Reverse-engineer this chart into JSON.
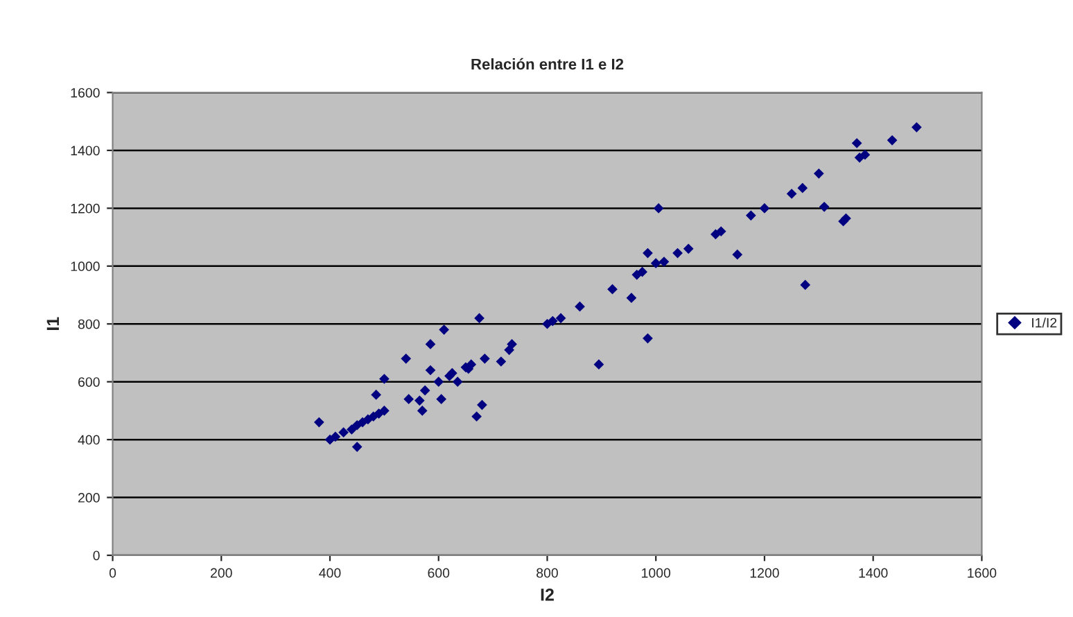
{
  "chart_data": {
    "type": "scatter",
    "title": "Relación entre I1 e I2",
    "xlabel": "I2",
    "ylabel": "I1",
    "x": [
      380,
      400,
      410,
      425,
      440,
      450,
      450,
      460,
      470,
      480,
      490,
      500,
      485,
      500,
      540,
      545,
      565,
      570,
      575,
      585,
      585,
      600,
      605,
      610,
      620,
      625,
      635,
      650,
      655,
      660,
      670,
      675,
      680,
      685,
      715,
      730,
      735,
      800,
      810,
      825,
      860,
      895,
      920,
      955,
      965,
      975,
      985,
      985,
      1000,
      1005,
      1015,
      1040,
      1060,
      1110,
      1120,
      1150,
      1175,
      1200,
      1250,
      1270,
      1275,
      1300,
      1310,
      1345,
      1350,
      1370,
      1375,
      1385,
      1435,
      1480
    ],
    "series": [
      {
        "name": "I1/I2",
        "color": "#000080",
        "values": [
          460,
          400,
          410,
          425,
          435,
          450,
          375,
          460,
          470,
          480,
          490,
          500,
          555,
          610,
          680,
          540,
          535,
          500,
          570,
          640,
          730,
          600,
          540,
          780,
          620,
          630,
          600,
          650,
          645,
          660,
          480,
          820,
          520,
          680,
          670,
          710,
          730,
          800,
          810,
          820,
          860,
          660,
          920,
          890,
          970,
          980,
          1045,
          750,
          1010,
          1200,
          1015,
          1045,
          1060,
          1110,
          1120,
          1040,
          1175,
          1200,
          1250,
          1270,
          935,
          1320,
          1205,
          1155,
          1165,
          1425,
          1375,
          1385,
          1435,
          1480
        ]
      }
    ],
    "xlim": [
      0,
      1600
    ],
    "xticks": [
      0,
      200,
      400,
      600,
      800,
      1000,
      1200,
      1400,
      1600
    ],
    "ylim": [
      0,
      1600
    ],
    "yticks": [
      0,
      200,
      400,
      600,
      800,
      1000,
      1200,
      1400,
      1600
    ],
    "grid": "y",
    "legend": "right",
    "marker": "diamond"
  }
}
